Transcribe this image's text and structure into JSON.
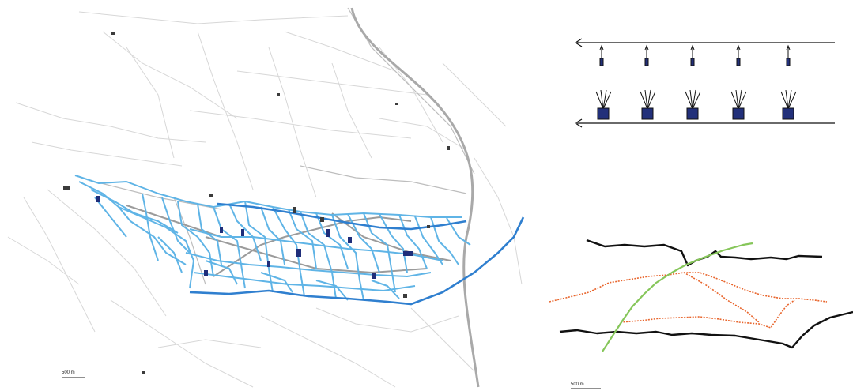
{
  "figure": {
    "map_scale_label": "500 m",
    "section_scale_label": "500 m"
  },
  "colors": {
    "background": "#ffffff",
    "base_roads": "#d7d7d7",
    "base_roads_dark": "#bdbdbd",
    "main_roads": "#9b9b9b",
    "highway": "#a9a9a9",
    "canal_network": "#5fb4e6",
    "main_watercourse": "#2f7fcf",
    "structures": "#1f2e7a",
    "buildings": "#3b3b3b",
    "diagram_lines": "#111111",
    "diagram_boxes": "#22307a",
    "section_black": "#111111",
    "section_orange": "#e8652c",
    "section_green": "#86c65a"
  },
  "connector_diagram": {
    "upper_channel_unit_count": 5,
    "lower_channel_unit_count": 5
  }
}
